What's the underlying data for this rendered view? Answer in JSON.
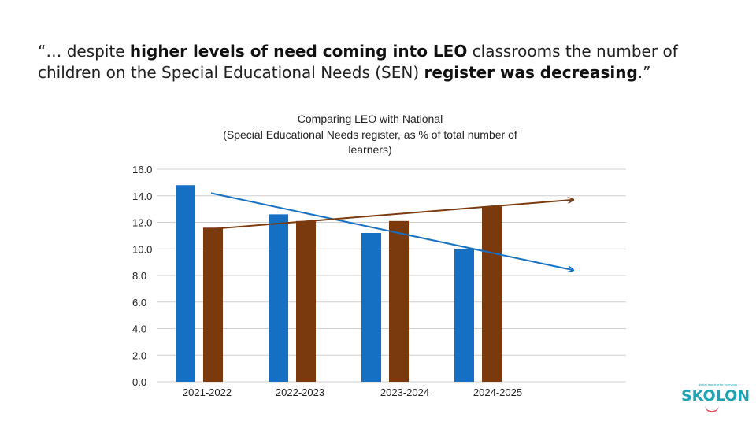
{
  "quote": {
    "open": "“… despite ",
    "bold1": "higher levels of need coming into LEO",
    "mid": " classrooms the number of children on the Special Educational Needs (SEN) ",
    "bold2": "register was decreasing",
    "close": ".”"
  },
  "logo": {
    "name": "SKOLON",
    "tagline": "digital learning for everyone"
  },
  "colors": {
    "leo": "#1570C4",
    "national": "#7B3A0E",
    "grid": "#cfcfcf",
    "axis_text": "#222222"
  },
  "chart_data": {
    "type": "bar",
    "title": "Comparing LEO with National",
    "subtitle": "(Special Educational Needs register, as % of total number of learners)",
    "categories": [
      "2021-2022",
      "2022-2023",
      "2023-2024",
      "2024-2025"
    ],
    "series": [
      {
        "name": "LEO",
        "values": [
          14.8,
          12.6,
          11.2,
          10.0
        ]
      },
      {
        "name": "National",
        "values": [
          11.6,
          12.1,
          12.1,
          13.2
        ]
      }
    ],
    "trendlines": [
      {
        "series": "LEO",
        "start": 14.2,
        "end": 8.4
      },
      {
        "series": "National",
        "start": 11.5,
        "end": 13.7
      }
    ],
    "ylim": [
      0,
      16
    ],
    "yticks": [
      "0.0",
      "2.0",
      "4.0",
      "6.0",
      "8.0",
      "10.0",
      "12.0",
      "14.0",
      "16.0"
    ],
    "xlabel": "",
    "ylabel": "",
    "grid": true
  }
}
